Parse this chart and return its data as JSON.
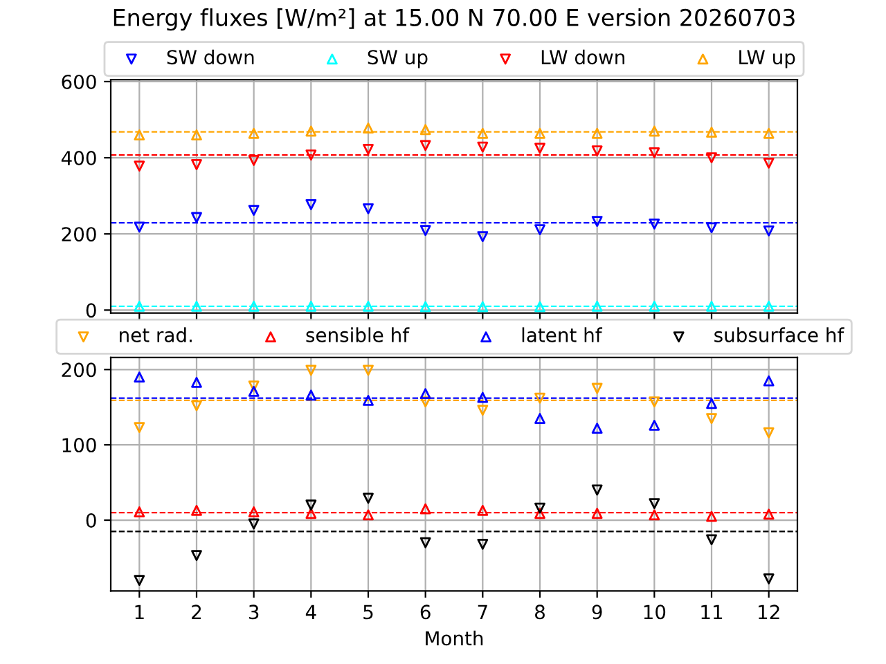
{
  "chart_data": [
    {
      "type": "scatter",
      "title": "Energy fluxes [W/m²] at 15.00 N 70.00 E version 20260703",
      "x": [
        1,
        2,
        3,
        4,
        5,
        6,
        7,
        8,
        9,
        10,
        11,
        12
      ],
      "xlim": [
        0.5,
        12.5
      ],
      "xticks": [
        1,
        2,
        3,
        4,
        5,
        6,
        7,
        8,
        9,
        10,
        11,
        12
      ],
      "ylim": [
        -8,
        605
      ],
      "yticks": [
        0,
        200,
        400,
        600
      ],
      "grid": true,
      "legend": "top",
      "tick_labels": "y",
      "series": [
        {
          "name": "SW down",
          "color": "#0000ff",
          "marker": "triangle_down",
          "values": [
            218,
            243,
            262,
            277,
            266,
            209,
            193,
            211,
            233,
            226,
            216,
            208
          ]
        },
        {
          "name": "SW up",
          "color": "#00ffff",
          "marker": "triangle",
          "values": [
            10,
            10,
            10,
            10,
            10,
            9,
            9,
            9,
            10,
            10,
            10,
            10
          ]
        },
        {
          "name": "LW down",
          "color": "#ff0000",
          "marker": "triangle_down",
          "values": [
            378,
            382,
            393,
            407,
            422,
            432,
            428,
            425,
            418,
            413,
            400,
            386
          ]
        },
        {
          "name": "LW up",
          "color": "#ffa500",
          "marker": "triangle",
          "values": [
            460,
            460,
            464,
            470,
            478,
            474,
            464,
            464,
            464,
            470,
            467,
            464
          ]
        }
      ],
      "ref_lines": [
        {
          "axis": "y",
          "value": 229,
          "color": "#0000ff",
          "line_style": "dashed"
        },
        {
          "axis": "y",
          "value": 10,
          "color": "#00ffff",
          "line_style": "dashed"
        },
        {
          "axis": "y",
          "value": 407,
          "color": "#ff0000",
          "line_style": "dashed"
        },
        {
          "axis": "y",
          "value": 468,
          "color": "#ffa500",
          "line_style": "dashed"
        }
      ]
    },
    {
      "type": "scatter",
      "xlabel": "Month",
      "x": [
        1,
        2,
        3,
        4,
        5,
        6,
        7,
        8,
        9,
        10,
        11,
        12
      ],
      "xlim": [
        0.5,
        12.5
      ],
      "xticks": [
        1,
        2,
        3,
        4,
        5,
        6,
        7,
        8,
        9,
        10,
        11,
        12
      ],
      "ylim": [
        -94,
        216
      ],
      "yticks": [
        0,
        100,
        200
      ],
      "grid": true,
      "legend": "top",
      "series": [
        {
          "name": "net rad.",
          "color": "#ffa500",
          "marker": "triangle_down",
          "values": [
            123,
            152,
            178,
            199,
            199,
            157,
            146,
            162,
            175,
            157,
            135,
            116
          ]
        },
        {
          "name": "sensible hf",
          "color": "#ff0000",
          "marker": "triangle",
          "values": [
            11,
            13,
            11,
            9,
            7,
            15,
            13,
            9,
            9,
            7,
            5,
            8
          ]
        },
        {
          "name": "latent hf",
          "color": "#0000ff",
          "marker": "triangle",
          "values": [
            190,
            183,
            171,
            166,
            159,
            168,
            163,
            135,
            122,
            126,
            155,
            185
          ]
        },
        {
          "name": "subsurface hf",
          "color": "#000000",
          "marker": "triangle_down",
          "values": [
            -80,
            -47,
            -5,
            20,
            29,
            -30,
            -32,
            16,
            40,
            22,
            -26,
            -78
          ]
        }
      ],
      "ref_lines": [
        {
          "axis": "y",
          "value": 159,
          "color": "#ffa500",
          "line_style": "dashed"
        },
        {
          "axis": "y",
          "value": 10,
          "color": "#ff0000",
          "line_style": "dashed"
        },
        {
          "axis": "y",
          "value": 162,
          "color": "#0000ff",
          "line_style": "dashed"
        },
        {
          "axis": "y",
          "value": -15,
          "color": "#000000",
          "line_style": "dashed"
        }
      ]
    }
  ]
}
